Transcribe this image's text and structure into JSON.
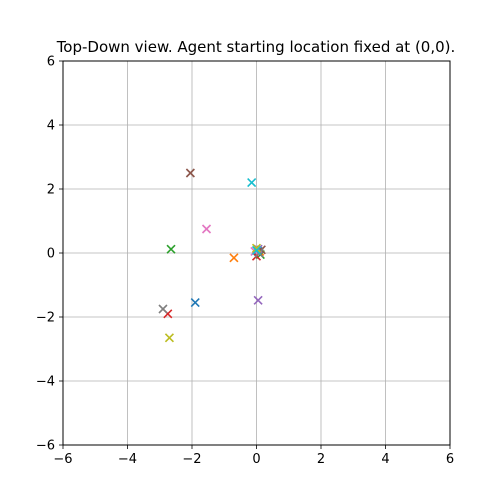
{
  "chart_data": {
    "type": "scatter",
    "title": "Top-Down view.  Agent starting location fixed at (0,0).",
    "xlabel": "",
    "ylabel": "",
    "xlim": [
      -6,
      6
    ],
    "ylim": [
      -6,
      6
    ],
    "xticks": [
      -6,
      -4,
      -2,
      0,
      2,
      4,
      6
    ],
    "yticks": [
      -6,
      -4,
      -2,
      0,
      2,
      4,
      6
    ],
    "grid": true,
    "marker": "x",
    "points": [
      {
        "x": -1.9,
        "y": -1.55,
        "color": "#1f77b4"
      },
      {
        "x": 0.05,
        "y": 0.05,
        "color": "#1f77b4"
      },
      {
        "x": -0.7,
        "y": -0.15,
        "color": "#ff7f0e"
      },
      {
        "x": 0.1,
        "y": 0.05,
        "color": "#ff7f0e"
      },
      {
        "x": -2.65,
        "y": 0.12,
        "color": "#2ca02c"
      },
      {
        "x": 0.12,
        "y": -0.05,
        "color": "#2ca02c"
      },
      {
        "x": -2.75,
        "y": -1.9,
        "color": "#d62728"
      },
      {
        "x": 0.0,
        "y": -0.1,
        "color": "#d62728"
      },
      {
        "x": 0.05,
        "y": -1.48,
        "color": "#9467bd"
      },
      {
        "x": 0.05,
        "y": 0.12,
        "color": "#9467bd"
      },
      {
        "x": -2.05,
        "y": 2.5,
        "color": "#8c564b"
      },
      {
        "x": 0.15,
        "y": 0.1,
        "color": "#8c564b"
      },
      {
        "x": -1.55,
        "y": 0.75,
        "color": "#e377c2"
      },
      {
        "x": -0.05,
        "y": 0.05,
        "color": "#e377c2"
      },
      {
        "x": -2.9,
        "y": -1.75,
        "color": "#7f7f7f"
      },
      {
        "x": 0.08,
        "y": 0.0,
        "color": "#7f7f7f"
      },
      {
        "x": -2.7,
        "y": -2.65,
        "color": "#bcbd22"
      },
      {
        "x": 0.0,
        "y": 0.15,
        "color": "#bcbd22"
      },
      {
        "x": -0.15,
        "y": 2.2,
        "color": "#17becf"
      },
      {
        "x": 0.0,
        "y": 0.08,
        "color": "#17becf"
      }
    ]
  }
}
